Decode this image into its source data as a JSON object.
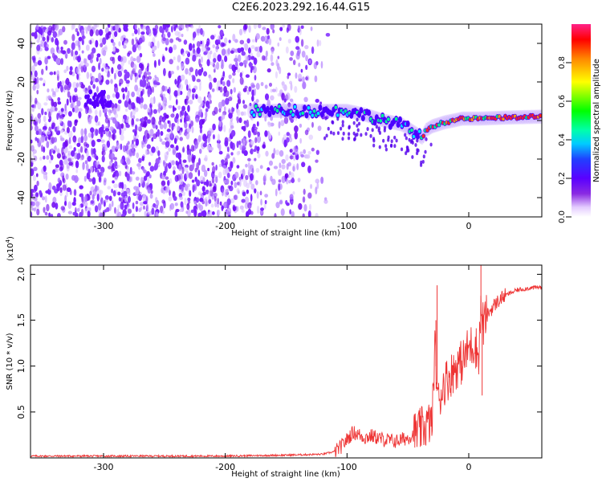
{
  "title": "C2E6.2023.292.16.44.G15",
  "chart_data": [
    {
      "type": "heatmap",
      "xlabel": "Height of straight line (km)",
      "ylabel": "Frequency (Hz)",
      "xlim": [
        -360,
        60
      ],
      "ylim": [
        -50,
        50
      ],
      "xticks": [
        -300,
        -200,
        -100,
        0
      ],
      "xtick_labels": [
        "-300",
        "-200",
        "-100",
        "0"
      ],
      "yticks": [
        -40,
        -20,
        0,
        20,
        40
      ],
      "ytick_labels": [
        "-40",
        "-20",
        "0",
        "20",
        "40"
      ],
      "colorbar": {
        "label": "Normalized spectral amplitude",
        "range": [
          0,
          1
        ],
        "ticks": [
          0.0,
          0.2,
          0.4,
          0.6,
          0.8
        ],
        "tick_labels": [
          "0.0",
          "0.2",
          "0.4",
          "0.6",
          "0.8"
        ]
      },
      "ridge": [
        {
          "x": -175,
          "y": 5
        },
        {
          "x": -150,
          "y": 5
        },
        {
          "x": -125,
          "y": 5
        },
        {
          "x": -100,
          "y": 5
        },
        {
          "x": -85,
          "y": 3
        },
        {
          "x": -70,
          "y": 0
        },
        {
          "x": -55,
          "y": -2
        },
        {
          "x": -45,
          "y": -6
        },
        {
          "x": -38,
          "y": -9
        },
        {
          "x": -35,
          "y": -5
        },
        {
          "x": -30,
          "y": -3
        },
        {
          "x": -20,
          "y": -1
        },
        {
          "x": -5,
          "y": 1
        },
        {
          "x": 10,
          "y": 1
        },
        {
          "x": 30,
          "y": 1.5
        },
        {
          "x": 60,
          "y": 2
        }
      ],
      "patch": {
        "x": -305,
        "y": 11
      },
      "grid": false
    },
    {
      "type": "line",
      "xlabel": "Height of straight line (km)",
      "ylabel": "SNR (10 * v/v)",
      "scale_label": "(x10",
      "scale_exp": "4",
      "scale_close": ")",
      "xlim": [
        -360,
        60
      ],
      "ylim": [
        0,
        2.1
      ],
      "xticks": [
        -300,
        -200,
        -100,
        0
      ],
      "xtick_labels": [
        "-300",
        "-200",
        "-100",
        "0"
      ],
      "yticks": [
        0.5,
        1.0,
        1.5,
        2.0
      ],
      "ytick_labels": [
        "0.5",
        "1.0",
        "1.5",
        "2.0"
      ],
      "color": "#ee3333",
      "series": [
        {
          "x": [
            -360,
            -300,
            -200,
            -150,
            -120,
            -110,
            -105,
            -100,
            -95,
            -90,
            -85,
            -80,
            -70,
            -60,
            -50,
            -45,
            -40,
            -35,
            -30,
            -28,
            -25,
            -22,
            -20,
            -15,
            -10,
            -5,
            0,
            5,
            8,
            10,
            12,
            15,
            20,
            25,
            30,
            40,
            50,
            60
          ],
          "values": [
            0.02,
            0.02,
            0.02,
            0.03,
            0.04,
            0.07,
            0.12,
            0.2,
            0.28,
            0.25,
            0.22,
            0.24,
            0.2,
            0.18,
            0.22,
            0.26,
            0.3,
            0.35,
            0.4,
            1.2,
            0.6,
            0.75,
            0.82,
            0.9,
            1.0,
            1.05,
            1.2,
            1.25,
            1.1,
            1.6,
            1.45,
            1.55,
            1.65,
            1.72,
            1.77,
            1.83,
            1.85,
            1.86
          ]
        }
      ],
      "grid": false
    }
  ]
}
